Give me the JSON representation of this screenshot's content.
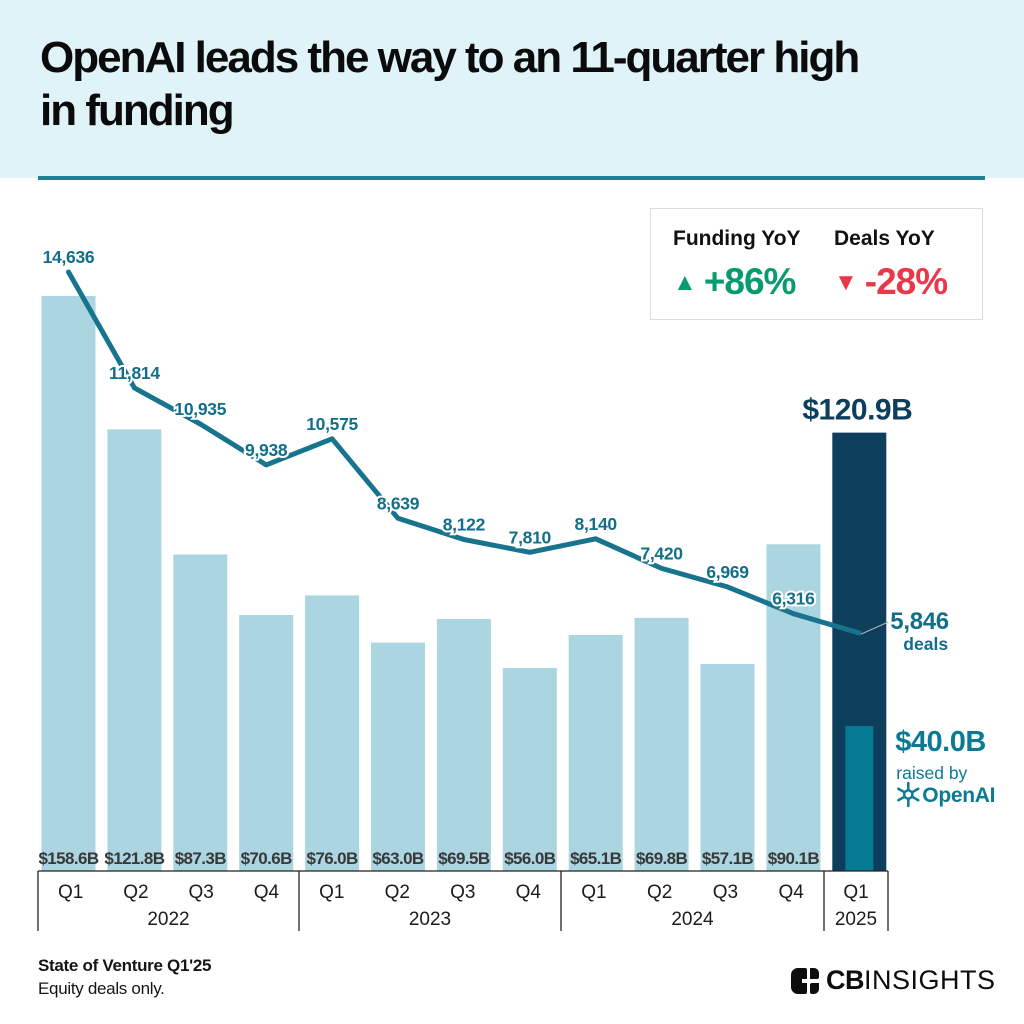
{
  "header": {
    "title": "OpenAI leads the way to an 11-quarter high in funding",
    "title_lines": [
      "OpenAI leads the way to an 11-quarter high",
      "in funding"
    ]
  },
  "legend": {
    "funding_label": "Funding YoY",
    "funding_value": "+86%",
    "deals_label": "Deals YoY",
    "deals_value": "-28%",
    "up_icon": "▲",
    "down_icon": "▼",
    "green": "#089b6d",
    "red": "#e8384a"
  },
  "chart_data": {
    "type": "bar+line",
    "categories": [
      "Q1 2022",
      "Q2 2022",
      "Q3 2022",
      "Q4 2022",
      "Q1 2023",
      "Q2 2023",
      "Q3 2023",
      "Q4 2023",
      "Q1 2024",
      "Q2 2024",
      "Q3 2024",
      "Q4 2024",
      "Q1 2025"
    ],
    "series": [
      {
        "name": "Funding ($B)",
        "type": "bar",
        "values": [
          158.6,
          121.8,
          87.3,
          70.6,
          76.0,
          63.0,
          69.5,
          56.0,
          65.1,
          69.8,
          57.1,
          90.1,
          120.9
        ],
        "labels": [
          "$158.6B",
          "$121.8B",
          "$87.3B",
          "$70.6B",
          "$76.0B",
          "$63.0B",
          "$69.5B",
          "$56.0B",
          "$65.1B",
          "$69.8B",
          "$57.1B",
          "$90.1B",
          "$120.9B"
        ]
      },
      {
        "name": "Deals",
        "type": "line",
        "values": [
          14636,
          11814,
          10935,
          9938,
          10575,
          8639,
          8122,
          7810,
          8140,
          7420,
          6969,
          6316,
          5846
        ],
        "labels": [
          "14,636",
          "11,814",
          "10,935",
          "9,938",
          "10,575",
          "8,639",
          "8,122",
          "7,810",
          "8,140",
          "7,420",
          "6,969",
          "6,316",
          "5,846"
        ]
      }
    ],
    "x_axis": {
      "groups": [
        {
          "year": "2022",
          "quarters": [
            "Q1",
            "Q2",
            "Q3",
            "Q4"
          ]
        },
        {
          "year": "2023",
          "quarters": [
            "Q1",
            "Q2",
            "Q3",
            "Q4"
          ]
        },
        {
          "year": "2024",
          "quarters": [
            "Q1",
            "Q2",
            "Q3",
            "Q4"
          ]
        },
        {
          "year": "2025",
          "quarters": [
            "Q1"
          ]
        }
      ]
    },
    "highlight": {
      "index": 12,
      "funding_label": "$120.9B",
      "deals_label": "5,846",
      "deals_sublabel": "deals",
      "openai_amount_b": 40.0,
      "openai_value": "$40.0B",
      "openai_caption": "raised by",
      "openai_name": "OpenAI"
    },
    "colors": {
      "bar": "#abd5e1",
      "bar_highlight": "#0d3e5c",
      "bar_openai": "#077a93",
      "line": "#17748c",
      "deal_label": "#136f89",
      "funding_label": "#383838",
      "axis": "#222222",
      "navy_text": "#0d3e5c",
      "teal_text": "#0b7a94",
      "connector": "#b5b5b5"
    },
    "title": "OpenAI leads the way to an 11-quarter high in funding",
    "grid": false,
    "legend_position": "top-right"
  },
  "footer": {
    "source": "State of Venture Q1'25",
    "note": "Equity deals only.",
    "brand_cb": "CB",
    "brand_insights": "INSIGHTS"
  }
}
